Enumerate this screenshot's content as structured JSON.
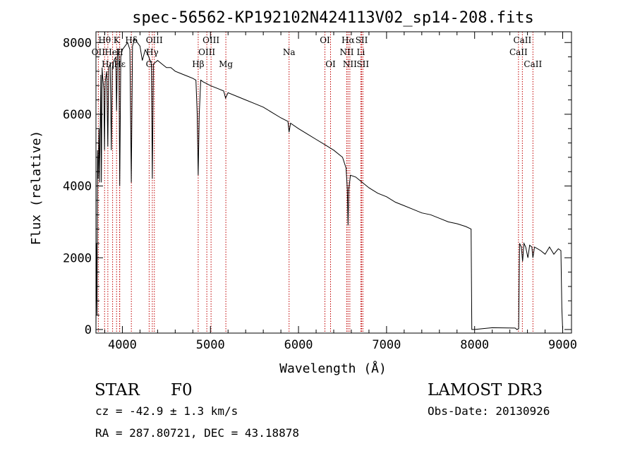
{
  "chart_data": {
    "type": "line",
    "title": "spec-56562-KP192102N424113V02_sp14-208.fits",
    "xlabel": "Wavelength (Å)",
    "ylabel": "Flux (relative)",
    "xlim": [
      3700,
      9100
    ],
    "ylim": [
      -100,
      8300
    ],
    "xticks": [
      4000,
      5000,
      6000,
      7000,
      8000,
      9000
    ],
    "yticks": [
      0,
      2000,
      4000,
      6000,
      8000
    ],
    "series": [
      {
        "name": "flux",
        "points": [
          [
            3700,
            0
          ],
          [
            3705,
            2400
          ],
          [
            3712,
            400
          ],
          [
            3718,
            5000
          ],
          [
            3725,
            4200
          ],
          [
            3735,
            5600
          ],
          [
            3742,
            4100
          ],
          [
            3755,
            7100
          ],
          [
            3762,
            4100
          ],
          [
            3770,
            7300
          ],
          [
            3778,
            7000
          ],
          [
            3790,
            6700
          ],
          [
            3797,
            5000
          ],
          [
            3805,
            6900
          ],
          [
            3822,
            7200
          ],
          [
            3835,
            5100
          ],
          [
            3845,
            7300
          ],
          [
            3862,
            7400
          ],
          [
            3875,
            5000
          ],
          [
            3885,
            7300
          ],
          [
            3905,
            7500
          ],
          [
            3925,
            7600
          ],
          [
            3934,
            6100
          ],
          [
            3945,
            7700
          ],
          [
            3960,
            7700
          ],
          [
            3970,
            4000
          ],
          [
            3982,
            7600
          ],
          [
            4000,
            7800
          ],
          [
            4030,
            7900
          ],
          [
            4060,
            8000
          ],
          [
            4085,
            7800
          ],
          [
            4101,
            4100
          ],
          [
            4115,
            7900
          ],
          [
            4140,
            8100
          ],
          [
            4170,
            8000
          ],
          [
            4200,
            7900
          ],
          [
            4226,
            7500
          ],
          [
            4260,
            7800
          ],
          [
            4300,
            7600
          ],
          [
            4330,
            7400
          ],
          [
            4340,
            4200
          ],
          [
            4352,
            7400
          ],
          [
            4400,
            7500
          ],
          [
            4450,
            7400
          ],
          [
            4500,
            7300
          ],
          [
            4550,
            7300
          ],
          [
            4600,
            7200
          ],
          [
            4650,
            7150
          ],
          [
            4700,
            7100
          ],
          [
            4750,
            7050
          ],
          [
            4800,
            7000
          ],
          [
            4835,
            6950
          ],
          [
            4850,
            6000
          ],
          [
            4861,
            4300
          ],
          [
            4873,
            6000
          ],
          [
            4890,
            6950
          ],
          [
            4920,
            6900
          ],
          [
            4960,
            6850
          ],
          [
            5000,
            6800
          ],
          [
            5050,
            6750
          ],
          [
            5100,
            6700
          ],
          [
            5150,
            6650
          ],
          [
            5172,
            6450
          ],
          [
            5200,
            6600
          ],
          [
            5300,
            6500
          ],
          [
            5400,
            6400
          ],
          [
            5500,
            6300
          ],
          [
            5600,
            6200
          ],
          [
            5700,
            6050
          ],
          [
            5800,
            5900
          ],
          [
            5880,
            5800
          ],
          [
            5893,
            5500
          ],
          [
            5910,
            5750
          ],
          [
            6000,
            5600
          ],
          [
            6100,
            5450
          ],
          [
            6200,
            5300
          ],
          [
            6300,
            5150
          ],
          [
            6400,
            5000
          ],
          [
            6500,
            4800
          ],
          [
            6540,
            4500
          ],
          [
            6555,
            3900
          ],
          [
            6563,
            2900
          ],
          [
            6571,
            3900
          ],
          [
            6590,
            4300
          ],
          [
            6650,
            4250
          ],
          [
            6700,
            4150
          ],
          [
            6800,
            3950
          ],
          [
            6900,
            3800
          ],
          [
            7000,
            3700
          ],
          [
            7100,
            3550
          ],
          [
            7200,
            3450
          ],
          [
            7300,
            3350
          ],
          [
            7400,
            3250
          ],
          [
            7500,
            3200
          ],
          [
            7600,
            3100
          ],
          [
            7700,
            3000
          ],
          [
            7800,
            2950
          ],
          [
            7900,
            2870
          ],
          [
            7960,
            2800
          ],
          [
            7968,
            0
          ],
          [
            8000,
            0
          ],
          [
            8200,
            50
          ],
          [
            8460,
            40
          ],
          [
            8480,
            0
          ],
          [
            8500,
            20
          ],
          [
            8510,
            2400
          ],
          [
            8530,
            2300
          ],
          [
            8545,
            1900
          ],
          [
            8560,
            2400
          ],
          [
            8580,
            2300
          ],
          [
            8605,
            2000
          ],
          [
            8625,
            2350
          ],
          [
            8650,
            2300
          ],
          [
            8662,
            2000
          ],
          [
            8680,
            2300
          ],
          [
            8750,
            2200
          ],
          [
            8800,
            2100
          ],
          [
            8850,
            2300
          ],
          [
            8900,
            2100
          ],
          [
            8950,
            2250
          ],
          [
            8980,
            2200
          ],
          [
            8990,
            600
          ],
          [
            9000,
            0
          ]
        ]
      }
    ],
    "line_markers": [
      {
        "label": "Hθ",
        "wavelength": 3798,
        "row": 1
      },
      {
        "label": "OII",
        "wavelength": 3727,
        "row": 2
      },
      {
        "label": "Hη",
        "wavelength": 3835,
        "row": 3
      },
      {
        "label": "K",
        "wavelength": 3934,
        "row": 1
      },
      {
        "label": "HeI",
        "wavelength": 3889,
        "row": 2
      },
      {
        "label": "Hε",
        "wavelength": 3970,
        "row": 3
      },
      {
        "label": "Hδ",
        "wavelength": 4102,
        "row": 1
      },
      {
        "label": "H",
        "wavelength": 3968,
        "row": 2
      },
      {
        "label": "OIII",
        "wavelength": 4363,
        "row": 1
      },
      {
        "label": "Hγ",
        "wavelength": 4340,
        "row": 2
      },
      {
        "label": "G",
        "wavelength": 4304,
        "row": 3
      },
      {
        "label": "OIII",
        "wavelength": 5007,
        "row": 1
      },
      {
        "label": "OIII",
        "wavelength": 4959,
        "row": 2
      },
      {
        "label": "Hβ",
        "wavelength": 4861,
        "row": 3
      },
      {
        "label": "Mg",
        "wavelength": 5175,
        "row": 3
      },
      {
        "label": "Na",
        "wavelength": 5893,
        "row": 2
      },
      {
        "label": "OI",
        "wavelength": 6300,
        "row": 1
      },
      {
        "label": "OI",
        "wavelength": 6364,
        "row": 3
      },
      {
        "label": "Hα",
        "wavelength": 6563,
        "row": 1
      },
      {
        "label": "SII",
        "wavelength": 6717,
        "row": 1
      },
      {
        "label": "NII",
        "wavelength": 6548,
        "row": 2
      },
      {
        "label": "Li",
        "wavelength": 6708,
        "row": 2
      },
      {
        "label": "NII",
        "wavelength": 6583,
        "row": 3
      },
      {
        "label": "SII",
        "wavelength": 6731,
        "row": 3
      },
      {
        "label": "CaII",
        "wavelength": 8542,
        "row": 1
      },
      {
        "label": "CaII",
        "wavelength": 8498,
        "row": 2
      },
      {
        "label": "CaII",
        "wavelength": 8662,
        "row": 3
      }
    ],
    "line_marker_color": "#c00000"
  },
  "info": {
    "object_class": "STAR",
    "subclass": "F0",
    "survey": "LAMOST DR3",
    "redshift": "cz = -42.9 ± 1.3 km/s",
    "obs_date": "Obs-Date: 20130926",
    "coords": "RA = 287.80721, DEC =  43.18878"
  }
}
